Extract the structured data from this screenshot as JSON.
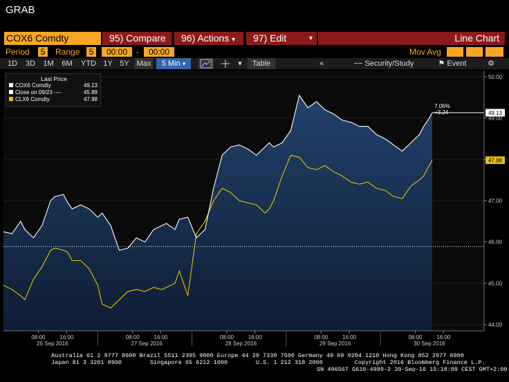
{
  "window_title": "GRAB",
  "header": {
    "ticker": "COX6 Comdty",
    "compare_label": "95) Compare",
    "actions_label": "96) Actions",
    "edit_label": "97) Edit",
    "chart_type_label": "Line Chart"
  },
  "settings": {
    "period_label": "Period",
    "period_value": "5",
    "range_label": "Range",
    "range_value": "5",
    "start_time": "00:00",
    "dash": "-",
    "end_time": "00:00",
    "mov_avg_label": "Mov Avg"
  },
  "toolbar": {
    "ranges": [
      "1D",
      "3D",
      "1M",
      "6M",
      "YTD",
      "1Y",
      "5Y",
      "Max"
    ],
    "interval": "5 Min",
    "table_label": "Table",
    "security_study_label": "Security/Study",
    "event_label": "Event"
  },
  "legend": {
    "header": "Last Price",
    "rows": [
      {
        "name": "COX6 Comdty",
        "value": "49.13",
        "color": "#ffffff"
      },
      {
        "name": "Close on 09/23 ----",
        "value": "45.89",
        "color": "#ffffff"
      },
      {
        "name": "CLX6 Comdty",
        "value": "47.98",
        "color": "#e8c000"
      }
    ]
  },
  "annotations": {
    "pct_change": "7.06%",
    "abs_change": "+3.24",
    "last_cox6": "49.13",
    "last_clx6": "47.98"
  },
  "colors": {
    "cox6_line": "#ffffff",
    "clx6_line": "#e8c000",
    "area_top": "#22416b",
    "area_bottom": "#0e1d33",
    "accent_orange": "#f5a623",
    "menu_red": "#8b1a1a"
  },
  "chart_data": {
    "type": "line",
    "y_ticks": [
      "50.00",
      "49.00",
      "48.00",
      "47.00",
      "46.00",
      "45.00",
      "44.00"
    ],
    "ylim": [
      43.85,
      50.15
    ],
    "x_hour_labels": [
      "08:00",
      "16:00",
      "08:00",
      "16:00",
      "08:00",
      "16:00",
      "08:00",
      "16:00",
      "08:00",
      "16:00"
    ],
    "x_day_labels": [
      "26 Sep 2016",
      "27 Sep 2016",
      "28 Sep 2016",
      "29 Sep 2016",
      "30 Sep 2016"
    ],
    "reference_close": 45.89,
    "series": [
      {
        "name": "COX6 Comdty",
        "t": [
          0,
          2,
          4,
          5,
          7,
          9,
          11,
          12,
          14,
          15,
          16,
          18,
          20,
          22,
          23,
          25,
          27,
          29,
          31,
          33,
          35,
          37,
          38,
          40,
          41,
          43,
          45,
          47,
          49,
          51,
          53,
          55,
          57,
          59,
          61,
          62,
          63,
          65,
          67,
          69,
          71,
          73,
          75,
          77,
          79,
          81,
          83,
          85,
          87,
          89,
          91,
          93,
          95,
          97,
          98,
          99,
          100
        ],
        "values": [
          46.25,
          46.2,
          46.5,
          46.3,
          46.1,
          46.4,
          47.0,
          47.1,
          47.15,
          46.95,
          46.8,
          46.9,
          46.8,
          46.6,
          46.7,
          46.4,
          45.8,
          45.85,
          46.1,
          46.0,
          46.3,
          46.4,
          46.45,
          46.3,
          46.55,
          46.6,
          46.1,
          46.3,
          47.3,
          48.1,
          48.3,
          48.35,
          48.25,
          48.1,
          48.3,
          48.4,
          48.3,
          48.4,
          48.7,
          49.55,
          49.25,
          49.4,
          49.2,
          49.1,
          48.95,
          48.9,
          48.8,
          48.8,
          48.6,
          48.5,
          48.35,
          48.2,
          48.4,
          48.6,
          48.8,
          48.95,
          49.13
        ]
      },
      {
        "name": "CLX6 Comdty",
        "t": [
          0,
          2,
          4,
          5,
          7,
          9,
          11,
          12,
          14,
          15,
          16,
          18,
          20,
          22,
          23,
          25,
          27,
          29,
          31,
          33,
          35,
          37,
          38,
          40,
          41,
          43,
          45,
          47,
          49,
          51,
          53,
          55,
          57,
          59,
          61,
          62,
          63,
          65,
          67,
          69,
          71,
          73,
          75,
          77,
          79,
          81,
          83,
          85,
          87,
          89,
          91,
          93,
          95,
          97,
          98,
          99,
          100
        ],
        "values": [
          44.95,
          44.85,
          44.7,
          44.6,
          45.1,
          45.4,
          45.8,
          45.85,
          45.8,
          45.75,
          45.55,
          45.55,
          45.35,
          44.95,
          44.5,
          44.4,
          44.6,
          44.8,
          44.85,
          44.8,
          44.9,
          44.85,
          44.9,
          45.0,
          45.3,
          44.7,
          46.2,
          46.5,
          47.0,
          47.3,
          47.2,
          47.0,
          46.95,
          46.9,
          46.7,
          46.8,
          47.0,
          47.6,
          48.1,
          48.05,
          47.8,
          47.75,
          47.85,
          47.7,
          47.6,
          47.45,
          47.4,
          47.45,
          47.3,
          47.25,
          47.1,
          47.05,
          47.35,
          47.5,
          47.6,
          47.8,
          47.98
        ]
      }
    ]
  },
  "footer": {
    "line1": "Australia 61 2 9777 8600 Brazil 5511 2395 9000 Europe 44 20 7330 7500 Germany 49 69 9204 1210 Hong Kong 852 2977 6000",
    "line2": "Japan 81 3 3201 8900        Singapore 65 6212 1000        U.S. 1 212 318 2000         Copyright 2016 Bloomberg Finance L.P.",
    "line3": "SN 496567 G610-4989-2 30-Sep-16 15:18:09 CEST GMT+2:00"
  }
}
